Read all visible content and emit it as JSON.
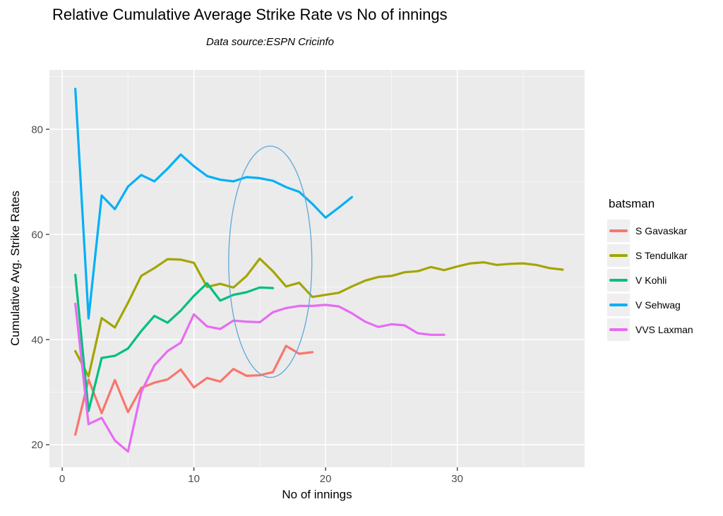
{
  "chart_data": {
    "type": "line",
    "title": "Relative Cumulative Average Strike Rate vs No of innings",
    "subtitle": "Data source:ESPN Cricinfo",
    "xlabel": "No of innings",
    "ylabel": "Cumulative Avg. Strike Rates",
    "legend_title": "batsman",
    "legend_position": "right",
    "grid": true,
    "panel_background": "#EBEBEB",
    "gridline_color": "#FFFFFF",
    "tick_label_color": "#4D4D4D",
    "tick_mark_color": "#333333",
    "x_ticks": [
      0,
      10,
      20,
      30
    ],
    "x_minor_gridlines": [
      5,
      15,
      25,
      35
    ],
    "y_ticks": [
      20,
      40,
      60,
      80
    ],
    "y_minor_gridlines": [
      30,
      50,
      70,
      90
    ],
    "xlim": [
      -0.97,
      39.67
    ],
    "ylim": [
      15.7,
      91.3
    ],
    "annotation_ellipse": {
      "cx": 15.8,
      "cy": 54.8,
      "rx": 3.16,
      "ry": 22.0,
      "color": "#5CA8DA"
    },
    "series": [
      {
        "name": "S Gavaskar",
        "color": "#F8766D",
        "x_start": 1,
        "values": [
          21.9,
          32.4,
          26.0,
          32.3,
          26.2,
          30.8,
          31.8,
          32.4,
          34.3,
          30.9,
          32.7,
          32.0,
          34.4,
          33.1,
          33.2,
          33.8,
          38.8,
          37.3,
          37.6
        ]
      },
      {
        "name": "S Tendulkar",
        "color": "#A3A500",
        "x_start": 1,
        "values": [
          37.8,
          33.0,
          44.1,
          42.3,
          47.0,
          52.1,
          53.6,
          55.3,
          55.2,
          54.6,
          50.0,
          50.6,
          49.9,
          52.1,
          55.4,
          53.0,
          50.1,
          50.8,
          48.1,
          48.5,
          48.9,
          50.1,
          51.2,
          51.9,
          52.1,
          52.8,
          53.0,
          53.8,
          53.2,
          53.9,
          54.5,
          54.7,
          54.2,
          54.4,
          54.5,
          54.2,
          53.6,
          53.3
        ]
      },
      {
        "name": "V Kohli",
        "color": "#00BF7D",
        "x_start": 1,
        "values": [
          52.3,
          26.4,
          36.5,
          36.9,
          38.3,
          41.6,
          44.5,
          43.2,
          45.5,
          48.3,
          50.7,
          47.4,
          48.5,
          49.0,
          49.9,
          49.8
        ]
      },
      {
        "name": "V Sehwag",
        "color": "#00B0F6",
        "x_start": 1,
        "values": [
          87.7,
          44.0,
          67.4,
          64.8,
          69.1,
          71.3,
          70.1,
          72.5,
          75.2,
          73.0,
          71.1,
          70.4,
          70.1,
          70.9,
          70.7,
          70.2,
          69.0,
          68.1,
          65.8,
          63.2,
          65.1,
          67.1
        ]
      },
      {
        "name": "VVS Laxman",
        "color": "#E76BF3",
        "x_start": 1,
        "values": [
          46.8,
          23.9,
          25.1,
          20.8,
          18.7,
          30.0,
          35.1,
          37.8,
          39.4,
          44.8,
          42.5,
          42.0,
          43.6,
          43.4,
          43.3,
          45.2,
          46.0,
          46.4,
          46.4,
          46.6,
          46.3,
          45.0,
          43.4,
          42.4,
          42.9,
          42.7,
          41.2,
          40.9,
          40.9
        ]
      }
    ]
  }
}
